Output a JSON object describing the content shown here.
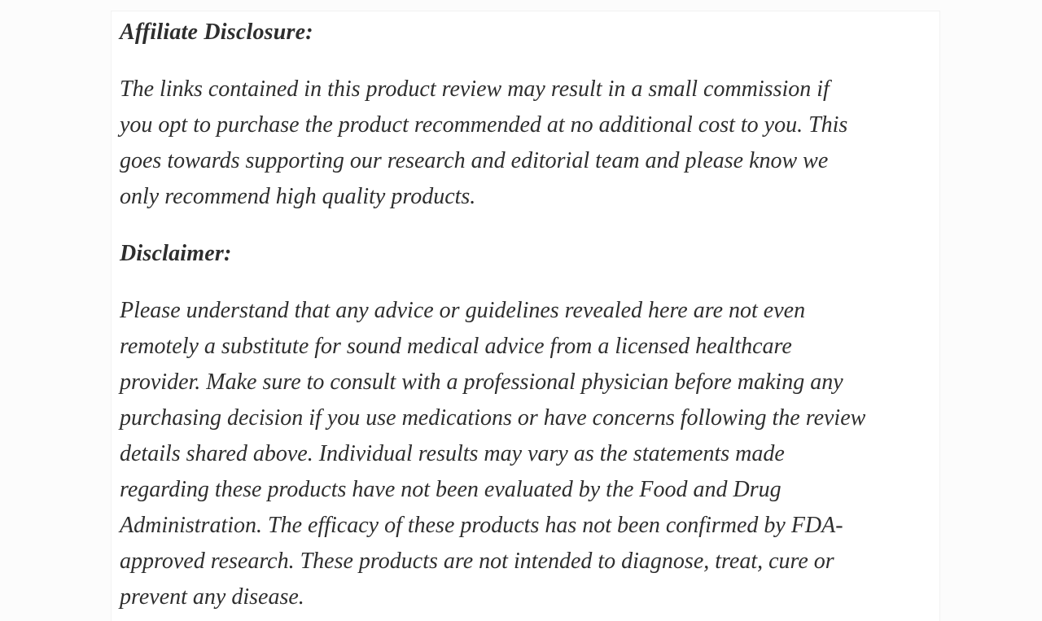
{
  "page": {
    "background_color": "#fcfcfc",
    "card_background_color": "#ffffff",
    "text_color": "#2e2e2e"
  },
  "article": {
    "sections": [
      {
        "heading": "Affiliate Disclosure:",
        "lines": [
          "The links contained in this product review may result in a small commission if",
          "you opt to purchase the product recommended at no additional cost to you. This",
          "goes towards supporting our research and editorial team and please know we",
          "only recommend high quality products."
        ]
      },
      {
        "heading": "Disclaimer:",
        "lines": [
          "Please understand that any advice or guidelines revealed here are not even",
          "remotely a substitute for sound medical advice from a licensed healthcare",
          "provider. Make sure to consult with a professional physician before making any",
          "purchasing decision if you use medications or have concerns following the review",
          "details shared above. Individual results may vary as the statements made",
          "regarding these products have not been evaluated by the Food and Drug",
          "Administration. The efficacy of these products has not been confirmed by FDA-",
          "approved research. These products are not intended to diagnose, treat, cure or",
          "prevent any disease."
        ]
      }
    ]
  }
}
